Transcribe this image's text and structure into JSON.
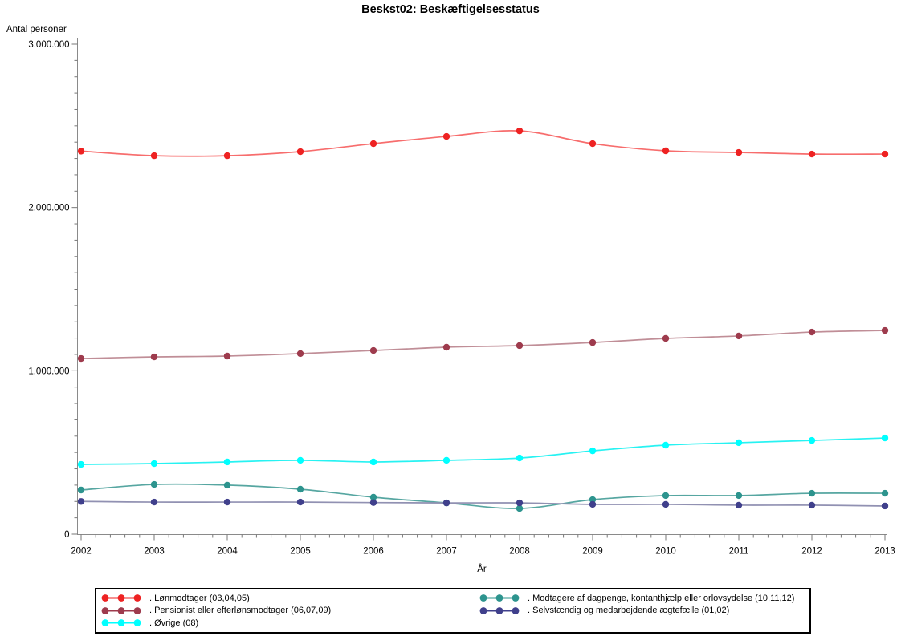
{
  "page": {
    "background": "#ffffff"
  },
  "chart_data": {
    "type": "line",
    "title": "Beskst02: Beskæftigelsesstatus",
    "ylabel": "Antal personer",
    "xlabel": "År",
    "x": [
      2002,
      2003,
      2004,
      2005,
      2006,
      2007,
      2008,
      2009,
      2010,
      2011,
      2012,
      2013
    ],
    "x_tick_labels": [
      "2002",
      "2003",
      "2004",
      "2005",
      "2006",
      "2007",
      "2008",
      "2009",
      "2010",
      "2011",
      "2012",
      "2013"
    ],
    "y_axis": {
      "min": 0,
      "max": 3000000,
      "major_tick_values": [
        0,
        1000000,
        2000000,
        3000000
      ],
      "major_tick_labels": [
        "0",
        "1.000.000",
        "2.000.000",
        "3.000.000"
      ],
      "minor_tick_step": 100000
    },
    "x_minor_divisions": 5,
    "grid": false,
    "legend_position": "bottom",
    "legend_columns": [
      3,
      2
    ],
    "series": [
      {
        "name": ". Lønmodtager (03,04,05)",
        "marker_color": "#ee2222",
        "line_color": "#f76d6d",
        "values": [
          2345000,
          2317000,
          2317000,
          2342000,
          2391000,
          2435000,
          2469000,
          2391000,
          2347000,
          2337000,
          2327000,
          2327000
        ]
      },
      {
        "name": ". Pensionist eller efterlønsmodtager (06,07,09)",
        "marker_color": "#9e3b4d",
        "line_color": "#c08e97",
        "values": [
          1075000,
          1085000,
          1090000,
          1105000,
          1124000,
          1144000,
          1154000,
          1173000,
          1198000,
          1213000,
          1237000,
          1247000
        ]
      },
      {
        "name": ". Øvrige (08)",
        "marker_color": "#00ffff",
        "line_color": "#27f2f2",
        "values": [
          427000,
          432000,
          442000,
          452000,
          442000,
          452000,
          466000,
          510000,
          545000,
          560000,
          574000,
          589000
        ]
      },
      {
        "name": ". Modtagere af dagpenge, kontanthjælp eller orlovsydelse (10,11,12)",
        "marker_color": "#2d948e",
        "line_color": "#56a6a1",
        "values": [
          270000,
          304000,
          300000,
          275000,
          226000,
          191000,
          157000,
          211000,
          236000,
          236000,
          250000,
          250000
        ]
      },
      {
        "name": ". Selvstændig og medarbejdende ægtefælle (01,02)",
        "marker_color": "#40408c",
        "line_color": "#9191b2",
        "values": [
          200000,
          196000,
          196000,
          196000,
          193000,
          191000,
          191000,
          182000,
          182000,
          177000,
          177000,
          172000
        ]
      }
    ]
  }
}
